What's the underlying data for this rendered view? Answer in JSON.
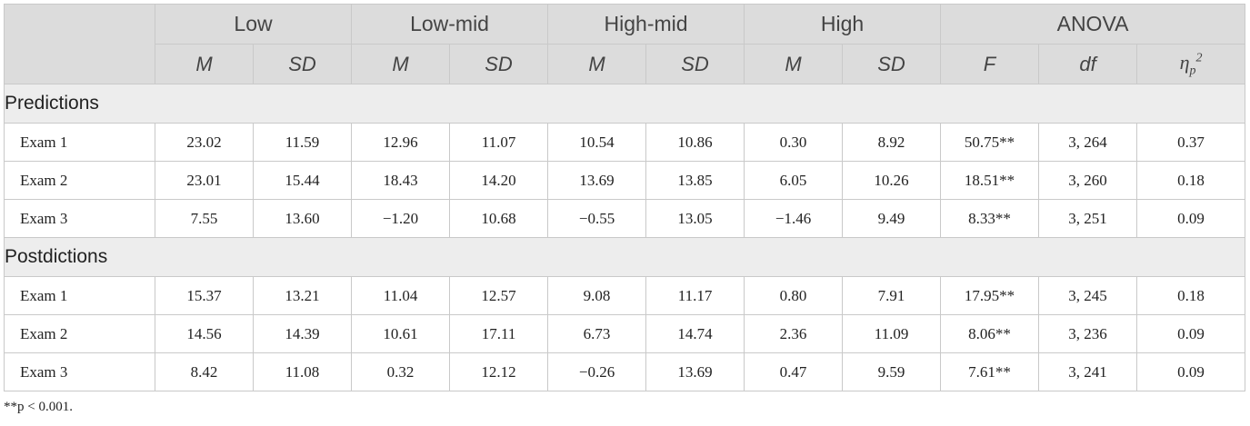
{
  "table": {
    "group_headers": [
      "Low",
      "Low-mid",
      "High-mid",
      "High",
      "ANOVA"
    ],
    "sub_headers": [
      "M",
      "SD",
      "M",
      "SD",
      "M",
      "SD",
      "M",
      "SD",
      "F",
      "df"
    ],
    "eta_symbol": "η",
    "eta_sub": "p",
    "eta_sup": "2",
    "sections": [
      {
        "label": "Predictions",
        "rows": [
          {
            "label": "Exam 1",
            "cells": [
              "23.02",
              "11.59",
              "12.96",
              "11.07",
              "10.54",
              "10.86",
              "0.30",
              "8.92",
              "50.75**",
              "3, 264",
              "0.37"
            ]
          },
          {
            "label": "Exam 2",
            "cells": [
              "23.01",
              "15.44",
              "18.43",
              "14.20",
              "13.69",
              "13.85",
              "6.05",
              "10.26",
              "18.51**",
              "3, 260",
              "0.18"
            ]
          },
          {
            "label": "Exam 3",
            "cells": [
              "7.55",
              "13.60",
              "−1.20",
              "10.68",
              "−0.55",
              "13.05",
              "−1.46",
              "9.49",
              "8.33**",
              "3, 251",
              "0.09"
            ]
          }
        ]
      },
      {
        "label": "Postdictions",
        "rows": [
          {
            "label": "Exam 1",
            "cells": [
              "15.37",
              "13.21",
              "11.04",
              "12.57",
              "9.08",
              "11.17",
              "0.80",
              "7.91",
              "17.95**",
              "3, 245",
              "0.18"
            ]
          },
          {
            "label": "Exam 2",
            "cells": [
              "14.56",
              "14.39",
              "10.61",
              "17.11",
              "6.73",
              "14.74",
              "2.36",
              "11.09",
              "8.06**",
              "3, 236",
              "0.09"
            ]
          },
          {
            "label": "Exam 3",
            "cells": [
              "8.42",
              "11.08",
              "0.32",
              "12.12",
              "−0.26",
              "13.69",
              "0.47",
              "9.59",
              "7.61**",
              "3, 241",
              "0.09"
            ]
          }
        ]
      }
    ]
  },
  "footnote": "**p < 0.001."
}
